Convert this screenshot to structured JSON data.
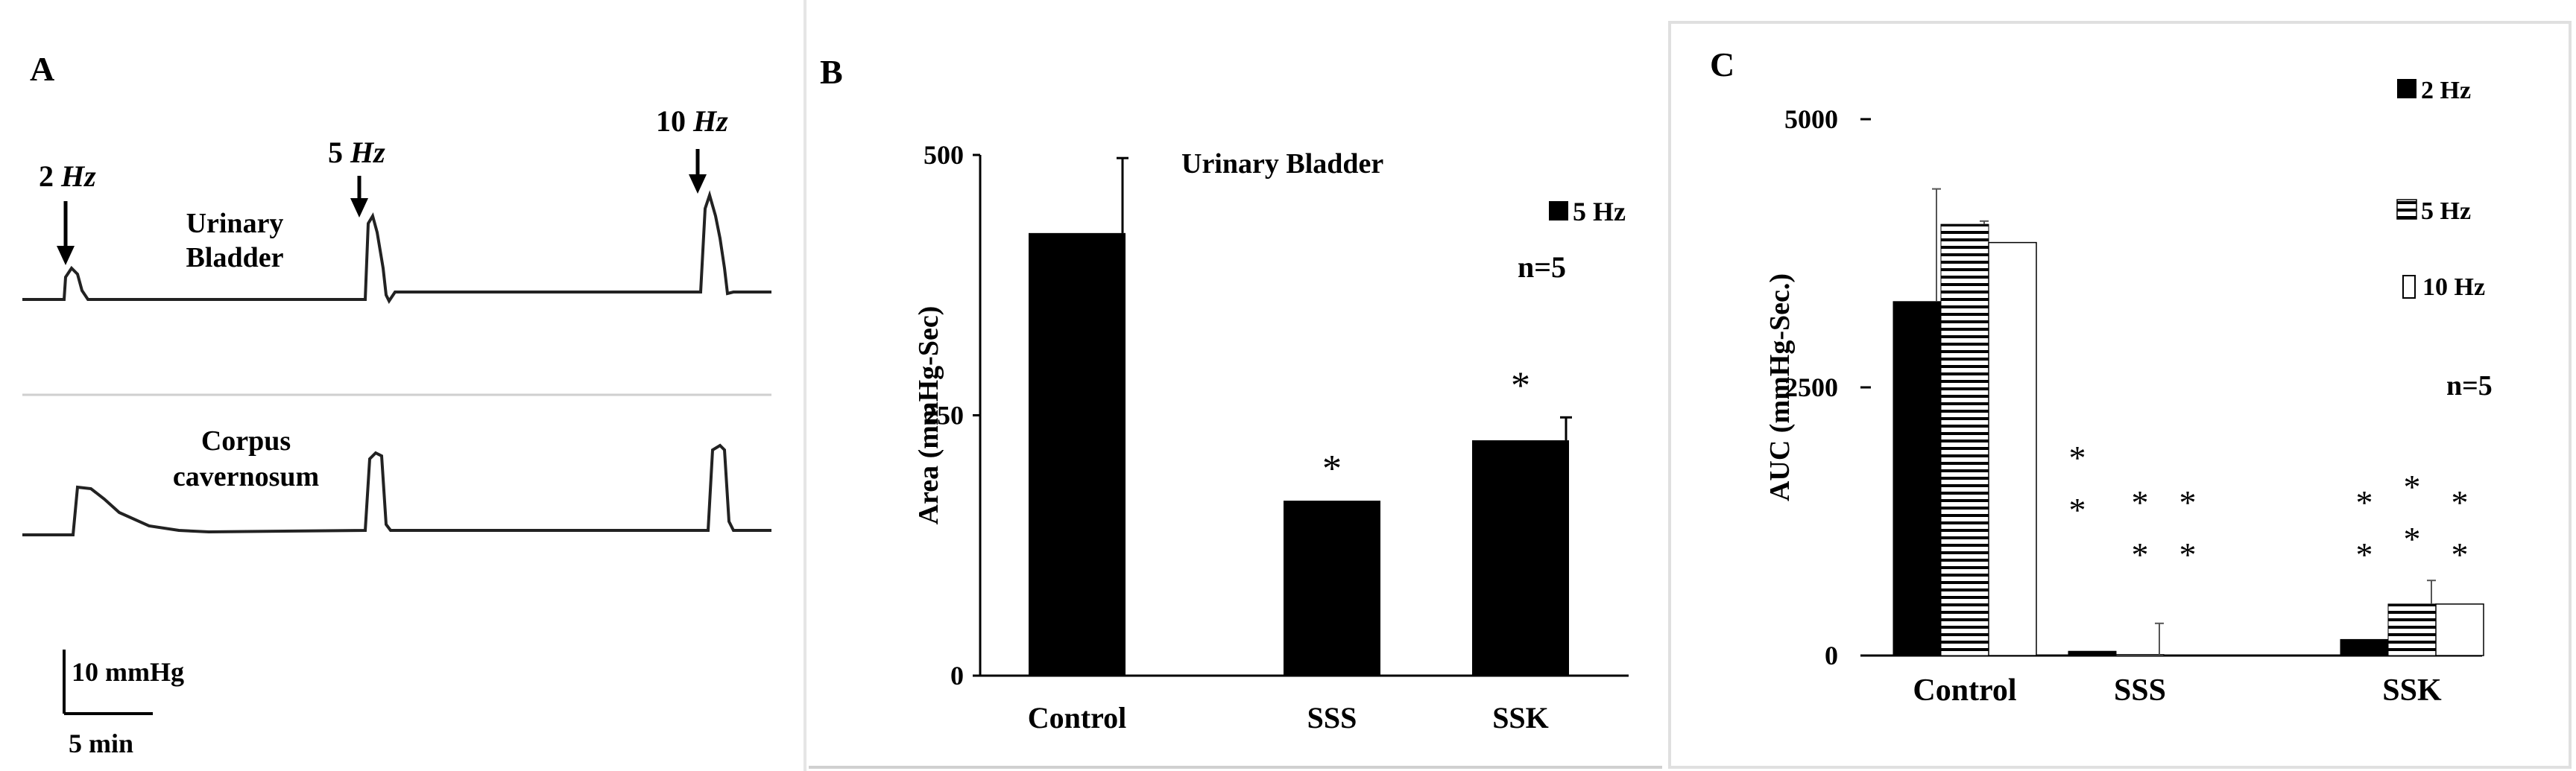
{
  "panels": {
    "a": {
      "letter": "A",
      "trace1_label": [
        "Urinary",
        "Bladder"
      ],
      "trace2_label": [
        "Corpus",
        "cavernosum"
      ],
      "markers": [
        {
          "num": "2",
          "unit": "Hz"
        },
        {
          "num": "5",
          "unit": "Hz"
        },
        {
          "num": "10",
          "unit": "Hz"
        }
      ],
      "scale_y": "10 mmHg",
      "scale_x": "5 min"
    },
    "b": {
      "letter": "B",
      "title": "Urinary Bladder",
      "legend": "5 Hz",
      "n_label": "n=5",
      "significance": "*"
    },
    "c": {
      "letter": "C",
      "legend": [
        "2 Hz",
        "5 Hz",
        "10 Hz"
      ],
      "n_label": "n=5",
      "significance": "*"
    }
  },
  "chart_data": [
    {
      "panel": "B",
      "type": "bar",
      "title": "Urinary Bladder",
      "ylabel": "Area (mmHg-Sec)",
      "xlabel": "",
      "categories": [
        "Control",
        "SSS",
        "SSK"
      ],
      "series": [
        {
          "name": "5 Hz",
          "values": [
            425,
            168,
            226
          ],
          "errors": [
            72,
            0,
            22
          ],
          "color": "#000000"
        }
      ],
      "yticks": [
        0,
        250,
        500
      ],
      "ylim": [
        0,
        500
      ],
      "significant": [
        false,
        true,
        true
      ],
      "grid": false,
      "legend_position": "top-right"
    },
    {
      "panel": "C",
      "type": "bar",
      "title": "",
      "ylabel": "AUC (mmHg-Sec.)",
      "xlabel": "",
      "categories": [
        "Control",
        "SSS",
        "SSK"
      ],
      "series": [
        {
          "name": "2 Hz",
          "values": [
            3300,
            40,
            150
          ],
          "errors": [
            1050,
            0,
            0
          ],
          "pattern": "solid",
          "color": "#000000"
        },
        {
          "name": "5 Hz",
          "values": [
            4020,
            10,
            480
          ],
          "errors": [
            30,
            290,
            220
          ],
          "pattern": "horizontal-lines",
          "color": "#000000"
        },
        {
          "name": "10 Hz",
          "values": [
            3850,
            0,
            480
          ],
          "errors": [
            0,
            0,
            0
          ],
          "pattern": "open",
          "color": "#000000"
        }
      ],
      "yticks": [
        0,
        2500,
        5000
      ],
      "ylim": [
        0,
        5000
      ],
      "significance_stars": [
        [
          0,
          0,
          0
        ],
        [
          2,
          2,
          2
        ],
        [
          2,
          2,
          2
        ]
      ],
      "grid": false,
      "legend_position": "top-right"
    }
  ]
}
